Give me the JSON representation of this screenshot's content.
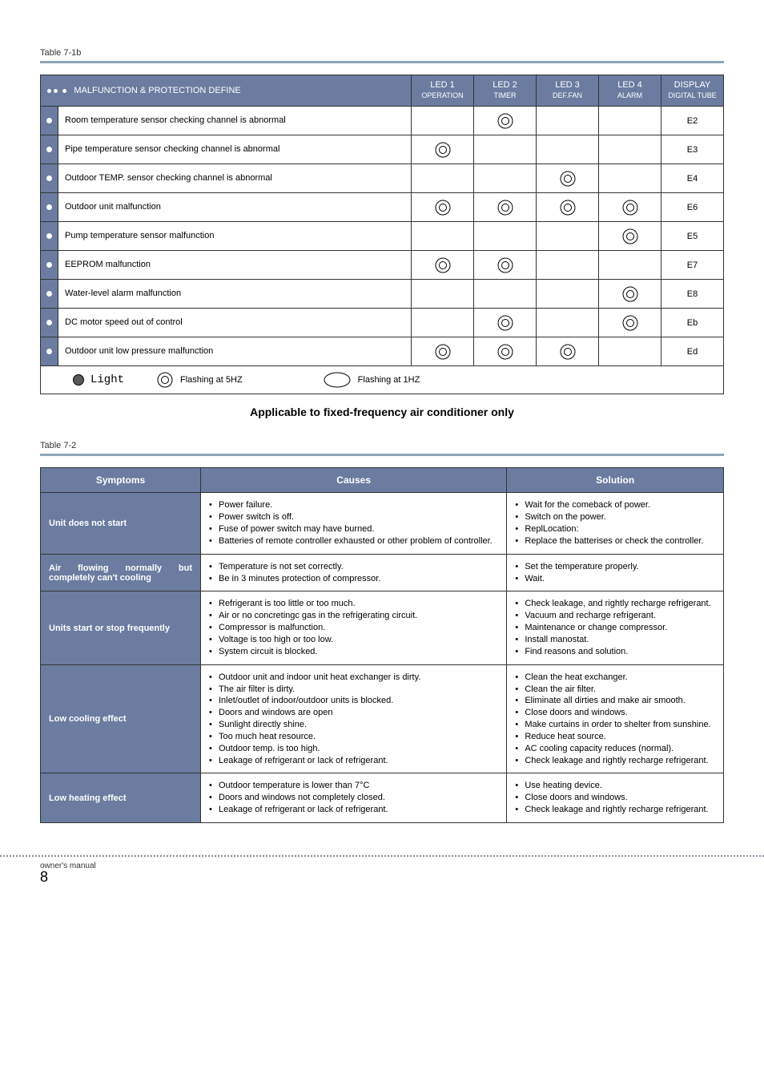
{
  "labels": {
    "table1_label": "Table 7-1b",
    "table2_label": "Table 7-2",
    "subtitle": "Applicable to fixed-frequency air conditioner only",
    "footer": "owner's manual",
    "page": "8"
  },
  "colors": {
    "header_bg": "#6b7ca0",
    "header_fg": "#ffffff",
    "rule": "#8fa6b8",
    "border": "#333333"
  },
  "legend": {
    "light": "Light",
    "flash5": "Flashing at 5HZ",
    "flash1": "Flashing at 1HZ"
  },
  "t1_headers": {
    "define": "MALFUNCTION & PROTECTION  DEFINE",
    "led1_a": "LED 1",
    "led1_b": "OPERATION",
    "led2_a": "LED 2",
    "led2_b": "TIMER",
    "led3_a": "LED 3",
    "led3_b": "DEF.FAN",
    "led4_a": "LED 4",
    "led4_b": "ALARM",
    "disp_a": "DISPLAY",
    "disp_b": "DIGITAL TUBE"
  },
  "t1_rows": [
    {
      "define": "Room temperature sensor checking channel is abnormal",
      "leds": [
        "",
        "5",
        "",
        ""
      ],
      "disp": "E2"
    },
    {
      "define": "Pipe temperature sensor checking channel is abnormal",
      "leds": [
        "5",
        "",
        "",
        ""
      ],
      "disp": "E3"
    },
    {
      "define": "Outdoor  TEMP.  sensor checking channel is abnormal",
      "leds": [
        "",
        "",
        "5",
        ""
      ],
      "disp": "E4"
    },
    {
      "define": "Outdoor unit malfunction",
      "leds": [
        "5",
        "5",
        "5",
        "5"
      ],
      "disp": "E6"
    },
    {
      "define": "Pump temperature sensor malfunction",
      "leds": [
        "",
        "",
        "",
        "5"
      ],
      "disp": "E5"
    },
    {
      "define": "EEPROM malfunction",
      "leds": [
        "5",
        "5",
        "",
        ""
      ],
      "disp": "E7"
    },
    {
      "define": "Water-level alarm malfunction",
      "leds": [
        "",
        "",
        "",
        "5"
      ],
      "disp": "E8"
    },
    {
      "define": "DC motor speed out of control",
      "leds": [
        "",
        "5",
        "",
        "5"
      ],
      "disp": "Eb"
    },
    {
      "define": "Outdoor unit low pressure malfunction",
      "leds": [
        "5",
        "5",
        "5",
        ""
      ],
      "disp": "Ed"
    }
  ],
  "t2_headers": {
    "symptoms": "Symptoms",
    "causes": "Causes",
    "solution": "Solution"
  },
  "t2_rows": [
    {
      "symptom": "Unit does not start",
      "causes": [
        "Power failure.",
        "Power switch is off.",
        "Fuse of power switch may have burned.",
        "Batteries of remote controller exhausted or other problem of controller."
      ],
      "solution": [
        "Wait for the comeback of power.",
        "Switch on the power.",
        "ReplLocation:",
        "Replace the batterises or check the controller."
      ]
    },
    {
      "symptom": "Air flowing normally but completely can't  cooling",
      "sym_justify": true,
      "causes": [
        "Temperature is not set correctly.",
        "Be in 3 minutes protection of compressor."
      ],
      "solution": [
        "Set the temperature properly.",
        "Wait."
      ]
    },
    {
      "symptom": "Units start or stop frequently",
      "causes": [
        "Refrigerant is too little or too much.",
        "Air or no concretingc gas in the refrigerating circuit.",
        "Compressor is malfunction.",
        "Voltage is too high or too low.",
        "System circuit is blocked."
      ],
      "solution": [
        "Check leakage, and rightly recharge refrigerant.",
        "Vacuum and recharge refrigerant.",
        "Maintenance or change compressor.",
        "Install manostat.",
        "Find reasons and solution."
      ]
    },
    {
      "symptom": "Low cooling effect",
      "causes": [
        "Outdoor unit and indoor unit heat exchanger is dirty.",
        "The air filter is dirty.",
        "Inlet/outlet of indoor/outdoor units is blocked.",
        "Doors and windows are open",
        "Sunlight directly shine.",
        "Too much heat resource.",
        "Outdoor temp. is too high.",
        "Leakage of refrigerant or lack of refrigerant."
      ],
      "solution": [
        "Clean the heat exchanger.",
        "Clean the air filter.",
        "Eliminate all dirties and make air smooth.",
        "Close doors and windows.",
        "Make curtains in order to shelter from sunshine.",
        "Reduce heat source.",
        "AC cooling capacity reduces (normal).",
        "Check leakage and rightly recharge refrigerant."
      ]
    },
    {
      "symptom": "Low heating effect",
      "causes": [
        "Outdoor temperature is lower  than 7°C",
        "Doors and windows not completely closed.",
        "Leakage of refrigerant or  lack of refrigerant."
      ],
      "solution": [
        "Use heating device.",
        "Close doors and windows.",
        "Check leakage and rightly recharge refrigerant."
      ]
    }
  ]
}
